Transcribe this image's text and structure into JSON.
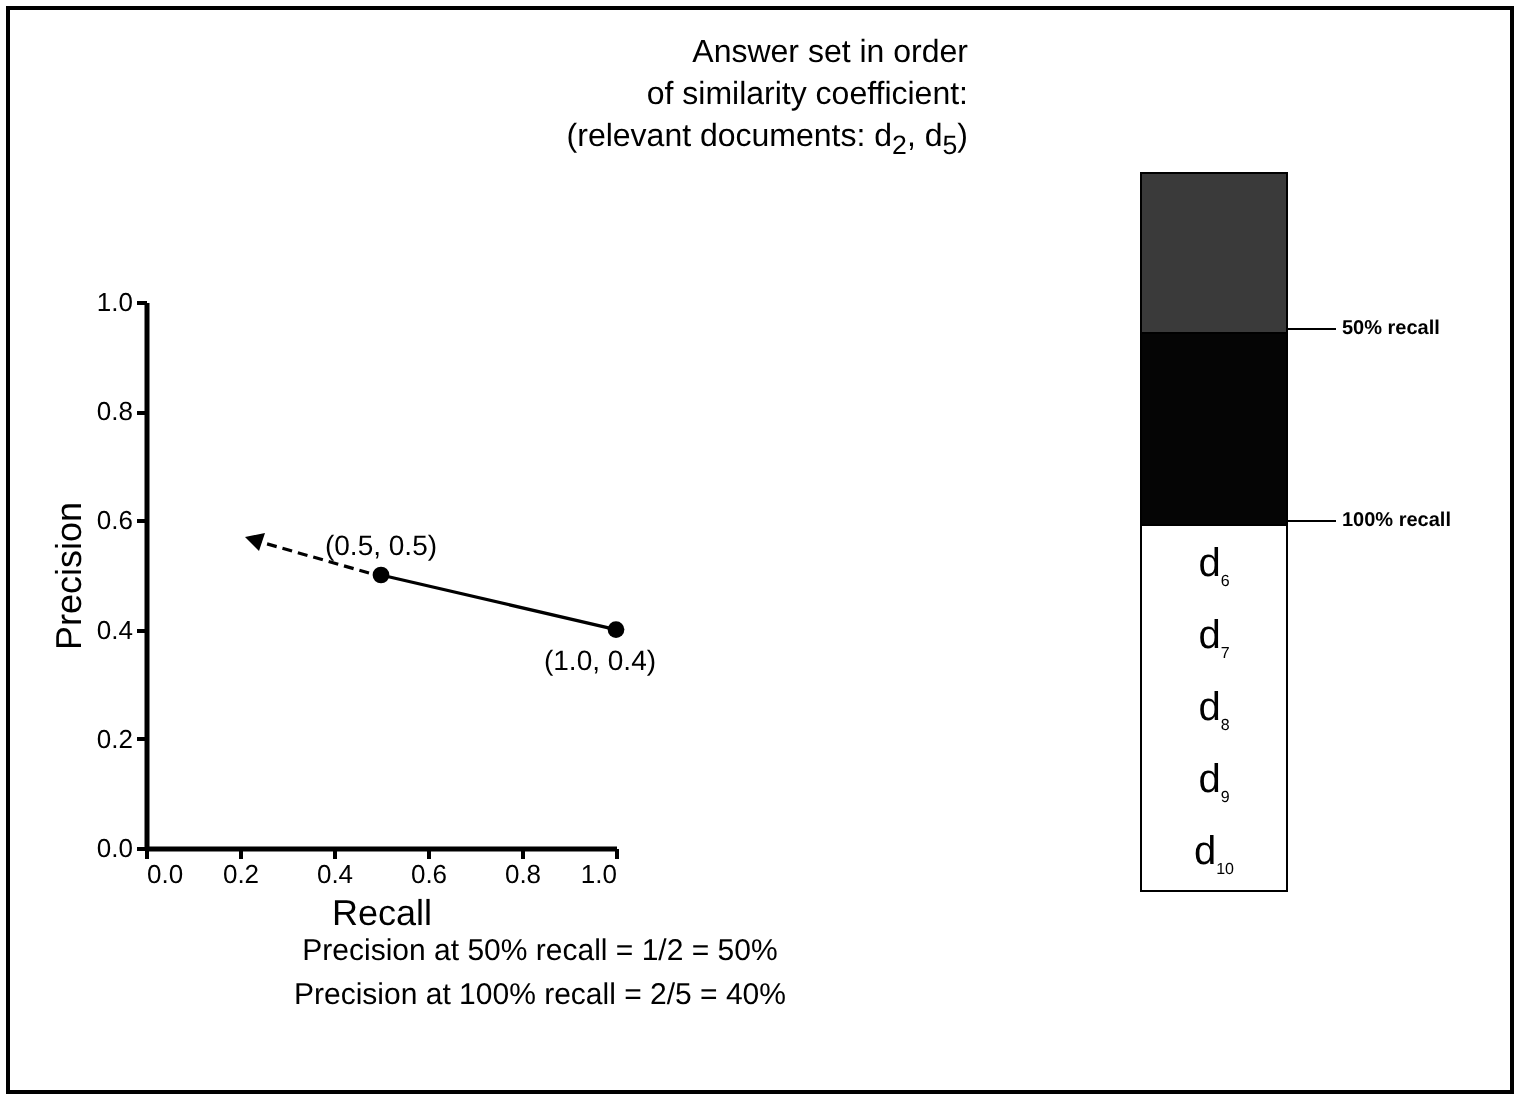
{
  "chart_data": {
    "type": "line",
    "title": "Answer set in order of similarity coefficient: (relevant documents: d$_{2}$, d$_{5}$)",
    "xlabel": "Recall",
    "ylabel": "Precision",
    "x": [
      0.5,
      1.0
    ],
    "series": [
      {
        "color": "#000000",
        "values": [
          0.5,
          0.4
        ],
        "value_labels": [
          "(0.5, 0.5)",
          "(1.0, 0.4)"
        ]
      }
    ],
    "marker": "circle",
    "line_style": "solid",
    "grid": false,
    "xlim": [
      0,
      1
    ],
    "ylim": [
      0,
      1
    ],
    "xticks": [
      {
        "value": 0,
        "label": "0.0"
      },
      0.2,
      0.4,
      0.6,
      0.8,
      {
        "value": 1,
        "label": "1.0"
      }
    ],
    "yticks": [
      {
        "value": 0,
        "label": "0.0"
      },
      0.2,
      0.4,
      0.6,
      0.8,
      {
        "value": 1,
        "label": "1.0"
      }
    ],
    "annotations": [
      "50% recall",
      "100% recall",
      "d$_{6}$",
      "d$_{7}$",
      "d$_{8}$",
      "d$_{9}$",
      "d$_{10}$",
      "Precision at 50% recall = 1/2 = 50%",
      "Precision at 100% recall = 2/5 = 40%"
    ]
  }
}
